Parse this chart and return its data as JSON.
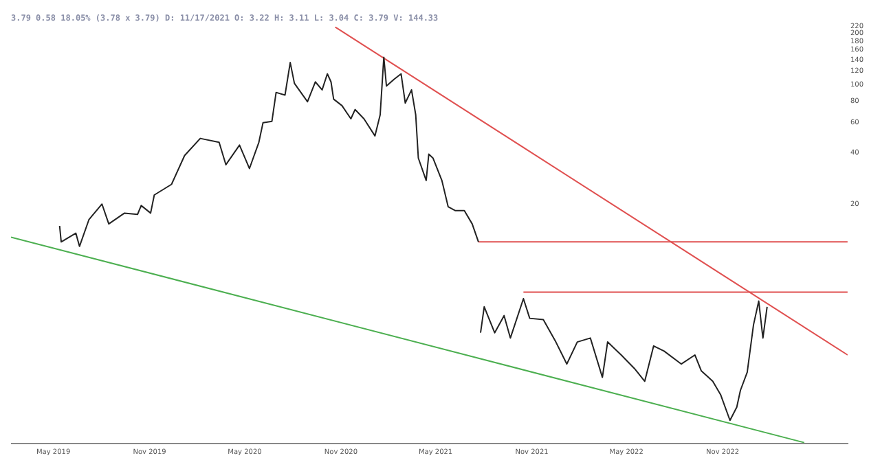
{
  "chart_data": {
    "type": "line",
    "title": "3.79 0.58 18.05% (3.78 x 3.79) D: 11/17/2021 O: 3.22 H: 3.11 L: 3.04 C: 3.79 V: 144.33",
    "series": [
      {
        "color": "#222222",
        "x": [
          "2019-05-13",
          "2019-05-16",
          "2019-06-13",
          "2019-06-20",
          "2019-07-08",
          "2019-08-02",
          "2019-08-15",
          "2019-09-14",
          "2019-10-09",
          "2019-10-16",
          "2019-11-03",
          "2019-11-10",
          "2019-12-13",
          "2020-01-07",
          "2020-02-06",
          "2020-03-13",
          "2020-03-26",
          "2020-04-21",
          "2020-05-10",
          "2020-05-28",
          "2020-06-05",
          "2020-06-22",
          "2020-06-30",
          "2020-07-17",
          "2020-07-27",
          "2020-08-04",
          "2020-08-29",
          "2020-09-13",
          "2020-09-26",
          "2020-10-06",
          "2020-10-13",
          "2020-10-18",
          "2020-11-03",
          "2020-11-20",
          "2020-11-28",
          "2020-12-15",
          "2021-01-05",
          "2021-01-15",
          "2021-01-22",
          "2021-01-27",
          "2021-02-11",
          "2021-02-24",
          "2021-03-04",
          "2021-03-16",
          "2021-03-24",
          "2021-03-29",
          "2021-04-13",
          "2021-04-18",
          "2021-04-26",
          "2021-05-13",
          "2021-05-25",
          "2021-06-08",
          "2021-06-25",
          "2021-07-10",
          "2021-07-22",
          "2021-07-24",
          "2021-07-26",
          "2021-08-02",
          "2021-08-22",
          "2021-09-09",
          "2021-09-21",
          "2021-10-16",
          "2021-10-28",
          "2021-11-23",
          "2021-12-17",
          "2022-01-07",
          "2022-01-27",
          "2022-02-21",
          "2022-03-16",
          "2022-03-26",
          "2022-04-21",
          "2022-05-16",
          "2022-06-05",
          "2022-06-22",
          "2022-07-12",
          "2022-08-14",
          "2022-09-09",
          "2022-09-21",
          "2022-10-13",
          "2022-10-28",
          "2022-11-15",
          "2022-11-28",
          "2022-12-05",
          "2022-12-18",
          "2022-12-30",
          "2023-01-09",
          "2023-01-17",
          "2023-01-25"
        ],
        "values": [
          14.9,
          12.0,
          13.5,
          11.3,
          16.2,
          20,
          15.3,
          17.7,
          17.4,
          19.6,
          17.7,
          22.6,
          26.1,
          38.5,
          48.5,
          46.0,
          34.0,
          44.3,
          32.3,
          46.0,
          60.0,
          61.1,
          90.2,
          87.0,
          135,
          102,
          79.6,
          104,
          93.4,
          116,
          104,
          82.4,
          75.5,
          63.2,
          71.6,
          63.2,
          50.2,
          66.7,
          145,
          98.4,
          108,
          116,
          78.2,
          93.4,
          66.7,
          37.2,
          27.5,
          39.2,
          37.2,
          27.5,
          19.3,
          18.3,
          18.3,
          15.3,
          12.0,
          null,
          3.52,
          5.0,
          3.52,
          4.44,
          3.28,
          5.58,
          4.28,
          4.21,
          3.11,
          2.31,
          3.11,
          3.28,
          1.93,
          3.11,
          2.61,
          2.18,
          1.83,
          2.95,
          2.75,
          2.31,
          2.61,
          2.11,
          1.83,
          1.53,
          1.08,
          1.29,
          1.62,
          2.07,
          3.92,
          5.4,
          3.28,
          5.0
        ]
      },
      {
        "color": "#e05050",
        "x": [
          "2020-10-21",
          "2023-06-28"
        ],
        "values": [
          218,
          2.61
        ]
      },
      {
        "color": "#e05050",
        "x": [
          "2021-07-22",
          "2023-06-28"
        ],
        "values": [
          12.0,
          12.0
        ]
      },
      {
        "color": "#e05050",
        "x": [
          "2021-10-16",
          "2023-06-28"
        ],
        "values": [
          6.1,
          6.1
        ]
      },
      {
        "color": "#4caf50",
        "x": [
          "2019-02-09",
          "2023-04-06"
        ],
        "values": [
          12.8,
          0.8
        ]
      }
    ],
    "log": "y",
    "xlim": [
      "2019-02-09",
      "2023-06-28"
    ],
    "xticks": [
      {
        "value": "2019-05-01",
        "label": "May 2019"
      },
      {
        "value": "2019-11-01",
        "label": "Nov 2019"
      },
      {
        "value": "2020-05-01",
        "label": "May 2020"
      },
      {
        "value": "2020-11-01",
        "label": "Nov 2020"
      },
      {
        "value": "2021-05-01",
        "label": "May 2021"
      },
      {
        "value": "2021-11-01",
        "label": "Nov 2021"
      },
      {
        "value": "2022-05-01",
        "label": "May 2022"
      },
      {
        "value": "2022-11-01",
        "label": "Nov 2022"
      }
    ],
    "ylim": [
      0.79,
      220
    ],
    "yticks": [
      20,
      40,
      60,
      80,
      100,
      120,
      140,
      160,
      180,
      200,
      220
    ],
    "grid": false,
    "legend": false,
    "marker": "none",
    "line_style": "solid"
  }
}
